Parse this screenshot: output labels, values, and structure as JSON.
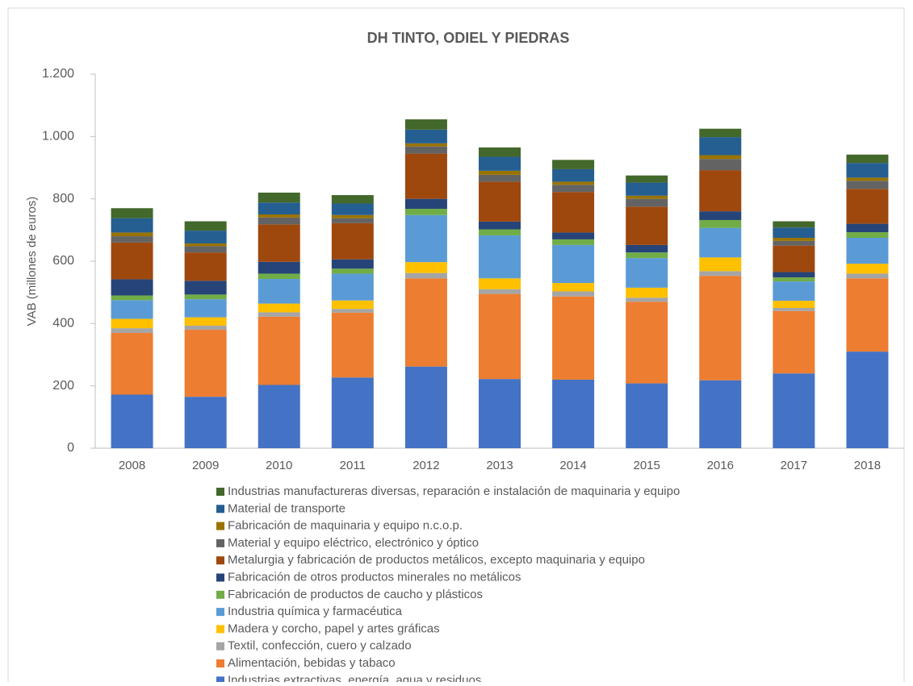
{
  "chart_data": {
    "type": "bar",
    "stacked": true,
    "title": "DH TINTO, ODIEL Y PIEDRAS",
    "y_label": "VAB (millones de euros)",
    "categories": [
      "2008",
      "2009",
      "2010",
      "2011",
      "2012",
      "2013",
      "2014",
      "2015",
      "2016",
      "2017",
      "2018"
    ],
    "ylim": [
      0,
      1200
    ],
    "yticks": [
      0,
      200,
      400,
      600,
      800,
      {
        "value": 1000,
        "label": "1.000"
      },
      {
        "value": 1200,
        "label": "1.200"
      }
    ],
    "series": [
      {
        "name": "Industrias extractivas, energía, agua y residuos",
        "color": "#4472c4",
        "values": [
          172,
          165,
          203,
          227,
          262,
          222,
          220,
          208,
          218,
          240,
          310
        ]
      },
      {
        "name": "Alimentación, bebidas y tabaco",
        "color": "#ed7d31",
        "values": [
          198,
          215,
          219,
          208,
          283,
          273,
          267,
          262,
          335,
          200,
          235
        ]
      },
      {
        "name": "Textil, confección, cuero y calzado",
        "color": "#a5a5a5",
        "values": [
          15,
          13,
          14,
          12,
          17,
          15,
          16,
          13,
          15,
          10,
          15
        ]
      },
      {
        "name": "Madera y corcho, papel y artes gráficas",
        "color": "#ffc000",
        "values": [
          30,
          27,
          28,
          27,
          35,
          35,
          27,
          32,
          44,
          23,
          32
        ]
      },
      {
        "name": "Industria química y farmacéutica",
        "color": "#5b9bd5",
        "values": [
          60,
          58,
          79,
          86,
          151,
          138,
          122,
          95,
          95,
          62,
          83
        ]
      },
      {
        "name": "Fabricación de productos de caucho y plásticos",
        "color": "#70ad47",
        "values": [
          15,
          15,
          17,
          16,
          20,
          19,
          18,
          18,
          25,
          13,
          18
        ]
      },
      {
        "name": "Fabricación de otros productos minerales no metálicos",
        "color": "#264478",
        "values": [
          52,
          44,
          38,
          30,
          32,
          25,
          22,
          24,
          28,
          17,
          27
        ]
      },
      {
        "name": "Metalurgia y fabricación de productos metálicos, excepto maquinaria y equipo",
        "color": "#9e480e",
        "values": [
          118,
          91,
          120,
          116,
          145,
          128,
          130,
          123,
          132,
          85,
          112
        ]
      },
      {
        "name": "Material y equipo eléctrico, electrónico y óptico",
        "color": "#636363",
        "values": [
          20,
          20,
          22,
          16,
          23,
          22,
          23,
          25,
          36,
          15,
          26
        ]
      },
      {
        "name": "Fabricación de maquinaria y equipo n.c.o.p.",
        "color": "#997300",
        "values": [
          12,
          9,
          10,
          10,
          10,
          13,
          10,
          10,
          12,
          10,
          10
        ]
      },
      {
        "name": "Material de transporte",
        "color": "#255e91",
        "values": [
          46,
          41,
          38,
          37,
          44,
          45,
          40,
          42,
          58,
          33,
          47
        ]
      },
      {
        "name": "Industrias manufactureras diversas, reparación e instalación de maquinaria y equipo",
        "color": "#43682b",
        "values": [
          32,
          30,
          32,
          27,
          33,
          30,
          30,
          23,
          27,
          20,
          27
        ]
      }
    ]
  }
}
